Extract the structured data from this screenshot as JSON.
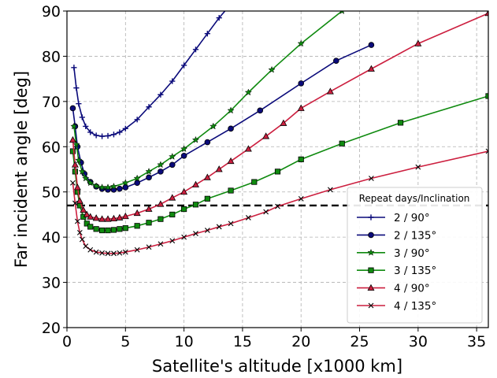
{
  "chart_data": {
    "type": "line",
    "xlabel": "Satellite's altitude [x1000 km]",
    "ylabel": "Far incident angle [deg]",
    "xlim": [
      0,
      36
    ],
    "ylim": [
      20,
      90
    ],
    "xticks": [
      0,
      5,
      10,
      15,
      20,
      25,
      30,
      35
    ],
    "yticks": [
      20,
      30,
      40,
      50,
      60,
      70,
      80,
      90
    ],
    "grid": true,
    "legend": {
      "title": "Repeat days/Inclination",
      "placement": "lower-right"
    },
    "reference_line": {
      "y": 47,
      "style": "dashed",
      "color": "#000000"
    },
    "series": [
      {
        "name": "2 / 90°",
        "color": "#0a0a7a",
        "marker": "plus",
        "x": [
          0.6,
          0.8,
          1.0,
          1.3,
          1.6,
          2.0,
          2.5,
          3.0,
          3.5,
          4.0,
          4.5,
          5.0,
          6.0,
          7.0,
          8.0,
          9.0,
          10.0,
          11.0,
          12.0,
          13.0,
          14.0
        ],
        "y": [
          77.5,
          73.0,
          69.5,
          66.5,
          64.5,
          63.2,
          62.5,
          62.3,
          62.4,
          62.7,
          63.2,
          64.0,
          66.0,
          68.8,
          71.5,
          74.5,
          78.0,
          81.5,
          85.0,
          88.5,
          91.5
        ]
      },
      {
        "name": "2 / 135°",
        "color": "#0a0a7a",
        "marker": "circle",
        "x": [
          0.5,
          0.7,
          0.9,
          1.2,
          1.5,
          2.0,
          2.5,
          3.0,
          3.5,
          4.0,
          4.5,
          5.0,
          6.0,
          7.0,
          8.0,
          9.0,
          10.0,
          12.0,
          14.0,
          16.5,
          20.0,
          23.0,
          26.0
        ],
        "y": [
          68.5,
          64.5,
          60.0,
          56.5,
          54.0,
          52.2,
          51.2,
          50.7,
          50.5,
          50.5,
          50.7,
          51.0,
          52.0,
          53.2,
          54.5,
          56.0,
          58.0,
          61.0,
          64.0,
          68.0,
          74.0,
          79.0,
          82.5
        ]
      },
      {
        "name": "3 / 90°",
        "color": "#0f8a0f",
        "marker": "star",
        "x": [
          0.6,
          0.8,
          1.0,
          1.3,
          1.6,
          2.0,
          2.5,
          3.0,
          3.5,
          4.0,
          5.0,
          6.0,
          7.0,
          8.0,
          9.0,
          10.0,
          11.0,
          12.5,
          14.0,
          15.5,
          17.5,
          20.0,
          23.5
        ],
        "y": [
          64.5,
          60.5,
          57.0,
          54.5,
          53.0,
          52.0,
          51.3,
          51.0,
          51.0,
          51.2,
          52.0,
          53.0,
          54.5,
          56.0,
          57.8,
          59.5,
          61.5,
          64.5,
          68.0,
          72.0,
          77.0,
          82.8,
          90.0
        ]
      },
      {
        "name": "3 / 135°",
        "color": "#0f8a0f",
        "marker": "square",
        "x": [
          0.5,
          0.7,
          0.9,
          1.1,
          1.4,
          1.7,
          2.0,
          2.5,
          3.0,
          3.5,
          4.0,
          4.5,
          5.0,
          6.0,
          7.0,
          8.0,
          9.0,
          10.0,
          11.0,
          12.0,
          14.0,
          16.0,
          18.0,
          20.0,
          23.5,
          28.5,
          36.0
        ],
        "y": [
          59.0,
          54.5,
          50.0,
          47.0,
          44.5,
          43.0,
          42.3,
          41.8,
          41.5,
          41.5,
          41.6,
          41.8,
          42.0,
          42.5,
          43.2,
          44.0,
          45.0,
          46.2,
          47.2,
          48.5,
          50.3,
          52.2,
          54.5,
          57.2,
          60.7,
          65.3,
          71.2
        ]
      },
      {
        "name": "4 / 90°",
        "color": "#cc1f3f",
        "marker": "triangle",
        "x": [
          0.5,
          0.7,
          0.9,
          1.1,
          1.4,
          1.7,
          2.0,
          2.5,
          3.0,
          3.5,
          4.0,
          4.5,
          5.0,
          6.0,
          7.0,
          8.0,
          9.0,
          10.0,
          11.0,
          12.0,
          13.0,
          14.0,
          15.5,
          17.0,
          18.5,
          20.0,
          22.5,
          26.0,
          30.0,
          36.0
        ],
        "y": [
          61.5,
          56.0,
          51.0,
          48.0,
          46.0,
          45.0,
          44.5,
          44.2,
          44.0,
          44.0,
          44.1,
          44.3,
          44.6,
          45.3,
          46.2,
          47.3,
          48.7,
          50.0,
          51.6,
          53.2,
          55.0,
          56.8,
          59.5,
          62.3,
          65.2,
          68.5,
          72.2,
          77.2,
          82.8,
          89.5
        ]
      },
      {
        "name": "4 / 135°",
        "color": "#cc1f3f",
        "marker": "x",
        "x": [
          0.5,
          0.7,
          0.9,
          1.1,
          1.3,
          1.6,
          2.0,
          2.5,
          3.0,
          3.5,
          4.0,
          4.5,
          5.0,
          6.0,
          7.0,
          8.0,
          9.0,
          10.0,
          11.0,
          12.0,
          13.0,
          14.0,
          15.5,
          17.0,
          18.0,
          20.0,
          22.5,
          26.0,
          30.0,
          36.0
        ],
        "y": [
          52.0,
          47.5,
          43.5,
          41.0,
          39.5,
          38.0,
          37.2,
          36.7,
          36.5,
          36.4,
          36.4,
          36.5,
          36.7,
          37.2,
          37.8,
          38.5,
          39.2,
          40.0,
          40.8,
          41.5,
          42.3,
          43.0,
          44.3,
          45.6,
          46.8,
          48.5,
          50.5,
          53.0,
          55.5,
          59.0
        ]
      }
    ]
  }
}
